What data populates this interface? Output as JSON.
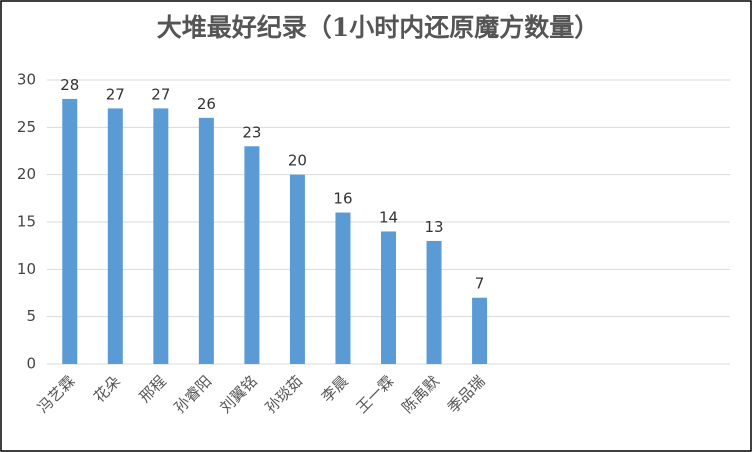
{
  "chart_data": {
    "type": "bar",
    "title": "大堆最好纪录（1小时内还原魔方数量）",
    "categories": [
      "冯艺霖",
      "花朵",
      "邢程",
      "孙睿阳",
      "刘翼铭",
      "孙琰茹",
      "李晨",
      "王一霖",
      "陈禹默",
      "季品瑞",
      null,
      null,
      null,
      null,
      null
    ],
    "values": [
      28,
      27,
      27,
      26,
      23,
      20,
      16,
      14,
      13,
      7,
      null,
      null,
      null,
      null,
      null
    ],
    "color": "#5b9bd5",
    "ylim": [
      0,
      30
    ],
    "yticks": [
      0,
      5,
      10,
      15,
      20,
      25,
      30
    ],
    "grid": true
  }
}
